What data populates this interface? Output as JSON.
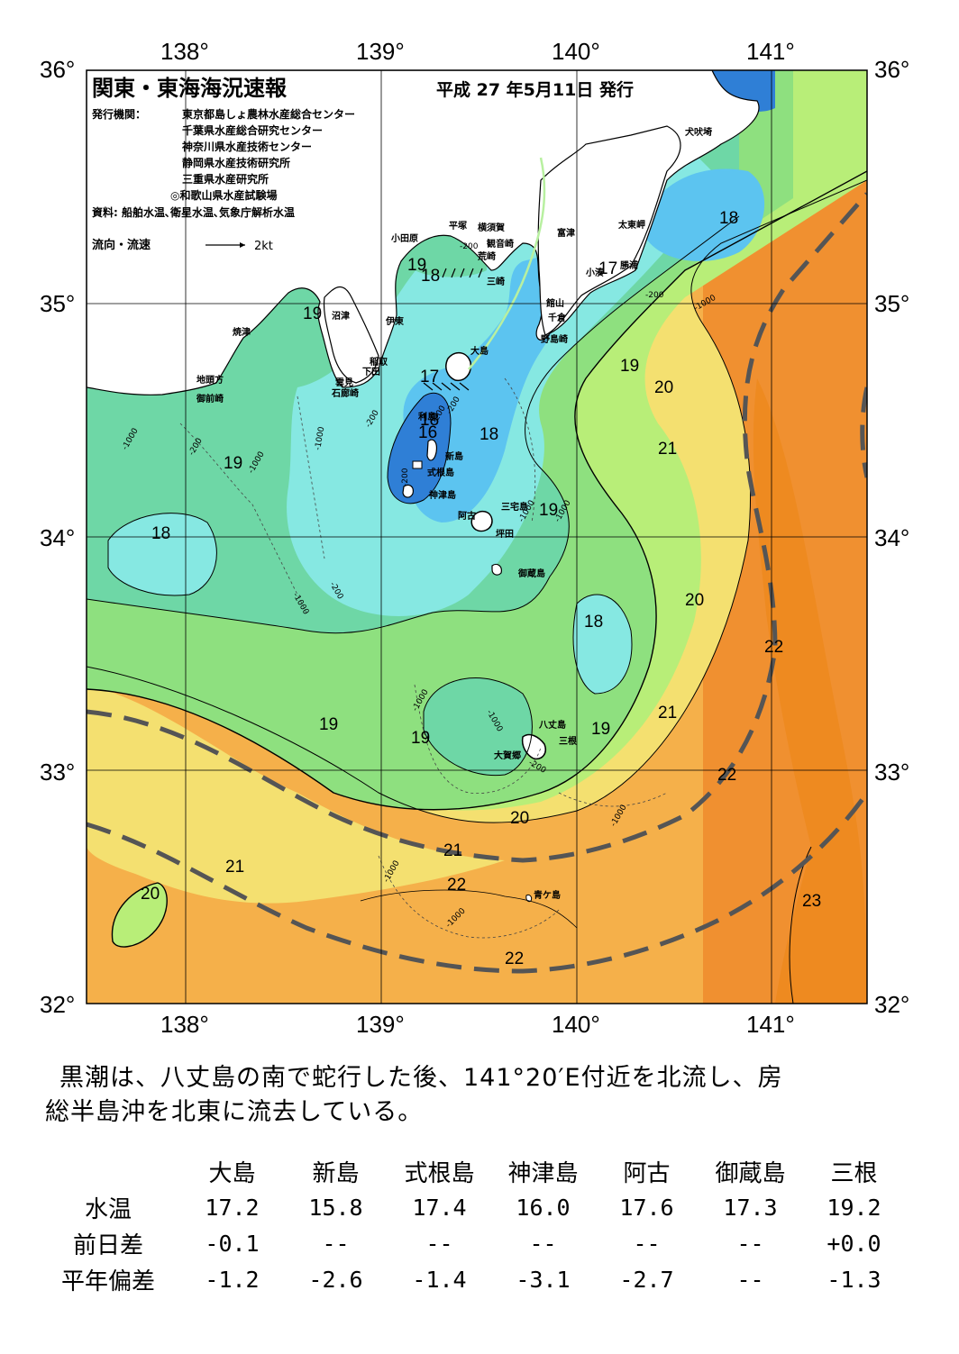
{
  "header": {
    "title": "関東・東海海況速報",
    "issue_date": "平成 27 年5月11日 発行",
    "issuers_label": "発行機関：",
    "issuers": [
      "東京都島しょ農林水産総合センター",
      "千葉県水産総合研究センター",
      "神奈川県水産技術センター",
      "静岡県水産技術研究所",
      "三重県水産研究所",
      "◎和歌山県水産試験場"
    ],
    "sources": "資料: 船舶水温､衛星水温､気象庁解析水温",
    "current_legend": "流向・流速",
    "current_scale": "2kt"
  },
  "axes": {
    "lon_labels": [
      "138°",
      "139°",
      "140°",
      "141°"
    ],
    "lat_labels": [
      "36°",
      "35°",
      "34°",
      "33°",
      "32°"
    ]
  },
  "colors": {
    "t16": "#2f7fd6",
    "t17": "#5cc4f0",
    "t18": "#86e8e2",
    "t19": "#6ed7a6",
    "t19b": "#8ee07f",
    "t20": "#b8ee78",
    "t21": "#f4e070",
    "t22": "#f5b04a",
    "t23": "#f09030",
    "t24": "#ee8a20",
    "land": "#ffffff",
    "kuroshio": "#555555"
  },
  "places": {
    "inubosaki": "犬吠埼",
    "taitomisaki": "太東岬",
    "katsuura": "勝浦",
    "kominato": "小湊",
    "futtsu": "富津",
    "yokosuka": "横須賀",
    "kannonzaki": "観音崎",
    "arasaki": "荒崎",
    "misaki": "三崎",
    "hiratsuka": "平塚",
    "odawara": "小田原",
    "tateyama": "館山",
    "chikura": "千倉",
    "nojimazaki": "野島崎",
    "numazu": "沼津",
    "ito": "伊東",
    "inatori": "稲取",
    "shimoda": "下田",
    "mikomoto": "雲見",
    "irozaki": "石廊崎",
    "yaizu": "焼津",
    "jitogata": "地頭方",
    "omaezaki": "御前崎",
    "oshima": "大島",
    "toshima": "利島",
    "niijima": "新島",
    "shikinejima": "式根島",
    "kozushima": "神津島",
    "miyakejima": "三宅島",
    "ako": "阿古",
    "tsubota": "坪田",
    "mikurajima": "御蔵島",
    "hachijojima": "八丈島",
    "mitsune": "三根",
    "okago": "大賀郷",
    "aogashima": "青ケ島"
  },
  "isotherm_labels": {
    "a": "19",
    "b": "18",
    "c": "17",
    "d": "19",
    "e": "17",
    "f": "16",
    "g": "18",
    "h": "19",
    "i": "18",
    "j": "19",
    "k": "18",
    "l": "20",
    "m": "21",
    "n": "19",
    "o": "20",
    "p": "18",
    "q": "19",
    "r": "19",
    "s": "19",
    "t": "21",
    "u": "22",
    "v": "22",
    "w": "20",
    "x": "21",
    "y": "22",
    "z": "22",
    "aa": "21",
    "ab": "20",
    "ac": "23",
    "ad": "18",
    "ae": "17"
  },
  "depth_labels": {
    "d1": "-1000",
    "d2": "-200",
    "d3": "-1000",
    "d4": "-200",
    "d5": "-1000",
    "d6": "-200",
    "d7": "-1000",
    "d8": "-200",
    "d9": "-1000",
    "d10": "-200",
    "d11": "-1000",
    "d12": "-200",
    "d13": "-1000",
    "d14": "-1000",
    "d15": "-200",
    "d16": "-1000",
    "d17": "-1000",
    "d18": "-1000",
    "d19": "-200",
    "d20": "-1000",
    "d21": "-200"
  },
  "summary": {
    "line1": "黒潮は、八丈島の南で蛇行した後、141°20′E付近を北流し、房",
    "line2": "総半島沖を北東に流去している。"
  },
  "table": {
    "stations": [
      "大島",
      "新島",
      "式根島",
      "神津島",
      "阿古",
      "御蔵島",
      "三根"
    ],
    "rows": [
      {
        "label": "水温",
        "values": [
          "17.2",
          "15.8",
          "17.4",
          "16.0",
          "17.6",
          "17.3",
          "19.2"
        ]
      },
      {
        "label": "前日差",
        "values": [
          "-0.1",
          "--",
          "--",
          "--",
          "--",
          "--",
          "+0.0"
        ]
      },
      {
        "label": "平年偏差",
        "values": [
          "-1.2",
          "-2.6",
          "-1.4",
          "-3.1",
          "-2.7",
          "--",
          "-1.3"
        ]
      }
    ]
  }
}
